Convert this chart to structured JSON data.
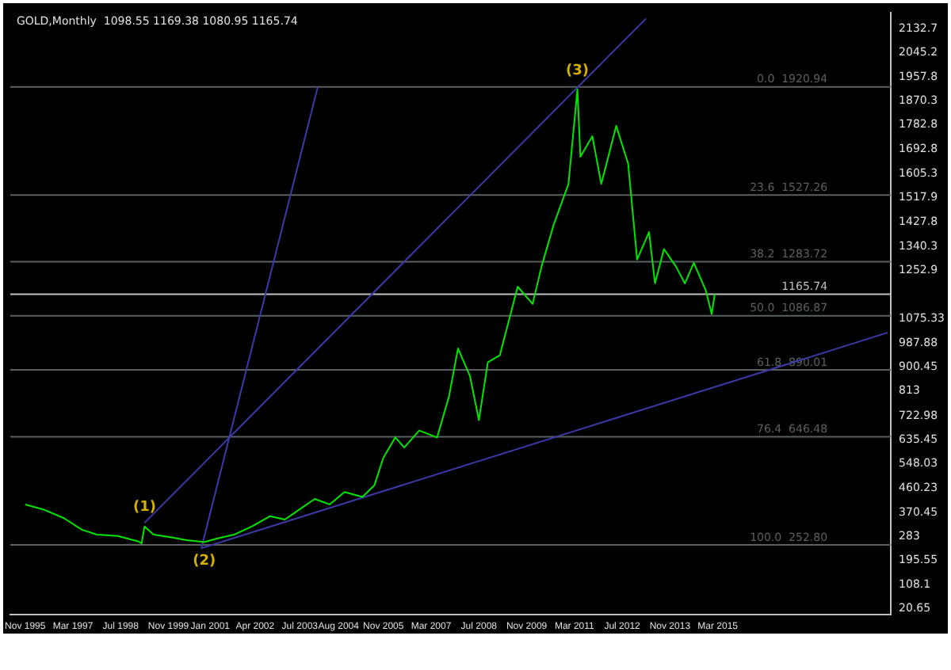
{
  "chart_data": {
    "type": "line",
    "title": "GOLD,Monthly  1098.55 1169.38 1080.95 1165.74",
    "xlim": [
      "1995-06",
      "2020-01"
    ],
    "xticks": [
      {
        "value": "1995-11",
        "label": "Nov 1995"
      },
      {
        "value": "1997-03",
        "label": "Mar 1997"
      },
      {
        "value": "1998-07",
        "label": "Jul 1998"
      },
      {
        "value": "1999-11",
        "label": "Nov 1999"
      },
      {
        "value": "2001-01",
        "label": "Jan 2001"
      },
      {
        "value": "2002-04",
        "label": "Apr 2002"
      },
      {
        "value": "2003-07",
        "label": "Jul 2003"
      },
      {
        "value": "2004-08",
        "label": "Aug 2004"
      },
      {
        "value": "2005-11",
        "label": "Nov 2005"
      },
      {
        "value": "2007-03",
        "label": "Mar 2007"
      },
      {
        "value": "2008-07",
        "label": "Jul 2008"
      },
      {
        "value": "2009-11",
        "label": "Nov 2009"
      },
      {
        "value": "2011-03",
        "label": "Mar 2011"
      },
      {
        "value": "2012-07",
        "label": "Jul 2012"
      },
      {
        "value": "2013-11",
        "label": "Nov 2013"
      },
      {
        "value": "2015-03",
        "label": "Mar 2015"
      }
    ],
    "ylim": [
      0,
      2190
    ],
    "yticks": [
      20.65,
      108.1,
      195.55,
      283.0,
      370.45,
      460.23,
      548.03,
      635.45,
      722.98,
      813.0,
      900.45,
      987.88,
      1075.33,
      1252.9,
      1340.3,
      1427.8,
      1517.9,
      1605.3,
      1692.8,
      1782.8,
      1870.3,
      1957.8,
      2045.2,
      2132.7
    ],
    "grid": false,
    "legend": false,
    "marker": "none",
    "line_style": "solid",
    "series": [
      {
        "color": "#00e600",
        "x": [
          "1995-11",
          "1996-05",
          "1996-12",
          "1997-06",
          "1997-11",
          "1998-06",
          "1999-01",
          "1999-02",
          "1999-03",
          "1999-06",
          "1999-12",
          "2000-05",
          "2000-11",
          "2001-03",
          "2001-09",
          "2002-03",
          "2002-09",
          "2003-02",
          "2003-06",
          "2003-12",
          "2004-05",
          "2004-10",
          "2005-04",
          "2005-08",
          "2005-11",
          "2006-03",
          "2006-06",
          "2006-11",
          "2007-05",
          "2007-09",
          "2007-12",
          "2008-04",
          "2008-07",
          "2008-10",
          "2009-02",
          "2009-08",
          "2010-01",
          "2010-04",
          "2010-08",
          "2011-01",
          "2011-04",
          "2011-05",
          "2011-09",
          "2011-12",
          "2012-05",
          "2012-09",
          "2012-12",
          "2013-04",
          "2013-06",
          "2013-09",
          "2014-01",
          "2014-04",
          "2014-07",
          "2014-11",
          "2015-01",
          "2015-02"
        ],
        "values": [
          400,
          382,
          350,
          308,
          290,
          285,
          265,
          258,
          320,
          290,
          280,
          270,
          263,
          275,
          290,
          320,
          357,
          345,
          375,
          420,
          400,
          445,
          427,
          470,
          570,
          644,
          607,
          669,
          644,
          794,
          968,
          868,
          707,
          918,
          943,
          1193,
          1130,
          1267,
          1417,
          1567,
          1911,
          1666,
          1741,
          1567,
          1779,
          1641,
          1292,
          1392,
          1205,
          1330,
          1267,
          1205,
          1280,
          1180,
          1093,
          1166
        ]
      },
      {
        "color": "#3a3aa8",
        "x": [
          "1999-03",
          "2013-03"
        ],
        "values": [
          333,
          2170
        ]
      },
      {
        "color": "#3a3aa8",
        "x": [
          "2000-10",
          "2019-12"
        ],
        "values": [
          240,
          1026
        ]
      },
      {
        "color": "#3a3aa8",
        "x": [
          "2000-10",
          "2004-01"
        ],
        "values": [
          240,
          1920
        ]
      }
    ],
    "ref_lines": [
      {
        "axis": "y",
        "value": 1920.94,
        "label": "0.0  1920.94",
        "color": "#5a6060"
      },
      {
        "axis": "y",
        "value": 1527.26,
        "label": "23.6  1527.26",
        "color": "#5a6060"
      },
      {
        "axis": "y",
        "value": 1283.72,
        "label": "38.2  1283.72",
        "color": "#5a6060"
      },
      {
        "axis": "y",
        "value": 1165.74,
        "label": "1165.74",
        "color": "#c0c0c0"
      },
      {
        "axis": "y",
        "value": 1086.87,
        "label": "50.0  1086.87",
        "color": "#5a6060"
      },
      {
        "axis": "y",
        "value": 890.01,
        "label": "61.8  890.01",
        "color": "#5a6060"
      },
      {
        "axis": "y",
        "value": 646.48,
        "label": "76.4  646.48",
        "color": "#5a6060"
      },
      {
        "axis": "y",
        "value": 252.8,
        "label": "100.0  252.80",
        "color": "#5a6060"
      }
    ],
    "annotations": [
      {
        "text": "(1)",
        "x": "1999-03",
        "y": 320
      },
      {
        "text": "(2)",
        "x": "2000-11",
        "y": 263
      },
      {
        "text": "(3)",
        "x": "2011-04",
        "y": 1911
      }
    ]
  }
}
